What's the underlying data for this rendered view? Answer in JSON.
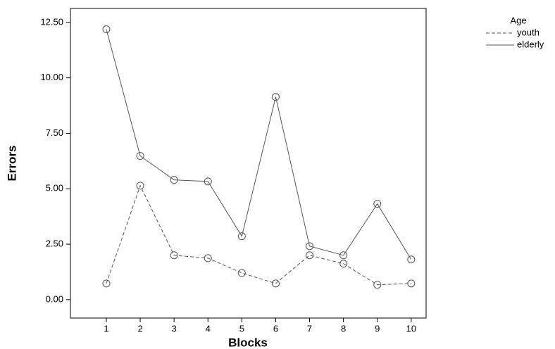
{
  "chart_data": {
    "type": "line",
    "x_label": "Blocks",
    "y_label": "Errors",
    "x": [
      1,
      2,
      3,
      4,
      5,
      6,
      7,
      8,
      9,
      10
    ],
    "xlim": [
      -0.06,
      10.44
    ],
    "xticks": [
      1,
      2,
      3,
      4,
      5,
      6,
      7,
      8,
      9,
      10
    ],
    "ylim": [
      -0.83,
      13.13
    ],
    "yticks": [
      {
        "value": 0,
        "label": "0.00"
      },
      {
        "value": 2.5,
        "label": "2.50"
      },
      {
        "value": 5,
        "label": "5.00"
      },
      {
        "value": 7.5,
        "label": "7.50"
      },
      {
        "value": 10,
        "label": "10.00"
      },
      {
        "value": 12.5,
        "label": "12.50"
      }
    ],
    "legend_title": "Age",
    "legend_position": "outside-right",
    "series": [
      {
        "name": "youth",
        "color": "#555555",
        "dashed": true,
        "values": [
          0.73,
          5.14,
          2.0,
          1.87,
          1.2,
          0.73,
          2.0,
          1.62,
          0.67,
          0.73
        ]
      },
      {
        "name": "elderly",
        "color": "#555555",
        "dashed": false,
        "values": [
          12.19,
          6.48,
          5.4,
          5.33,
          2.86,
          9.14,
          2.41,
          2.0,
          4.32,
          1.81
        ]
      }
    ]
  }
}
